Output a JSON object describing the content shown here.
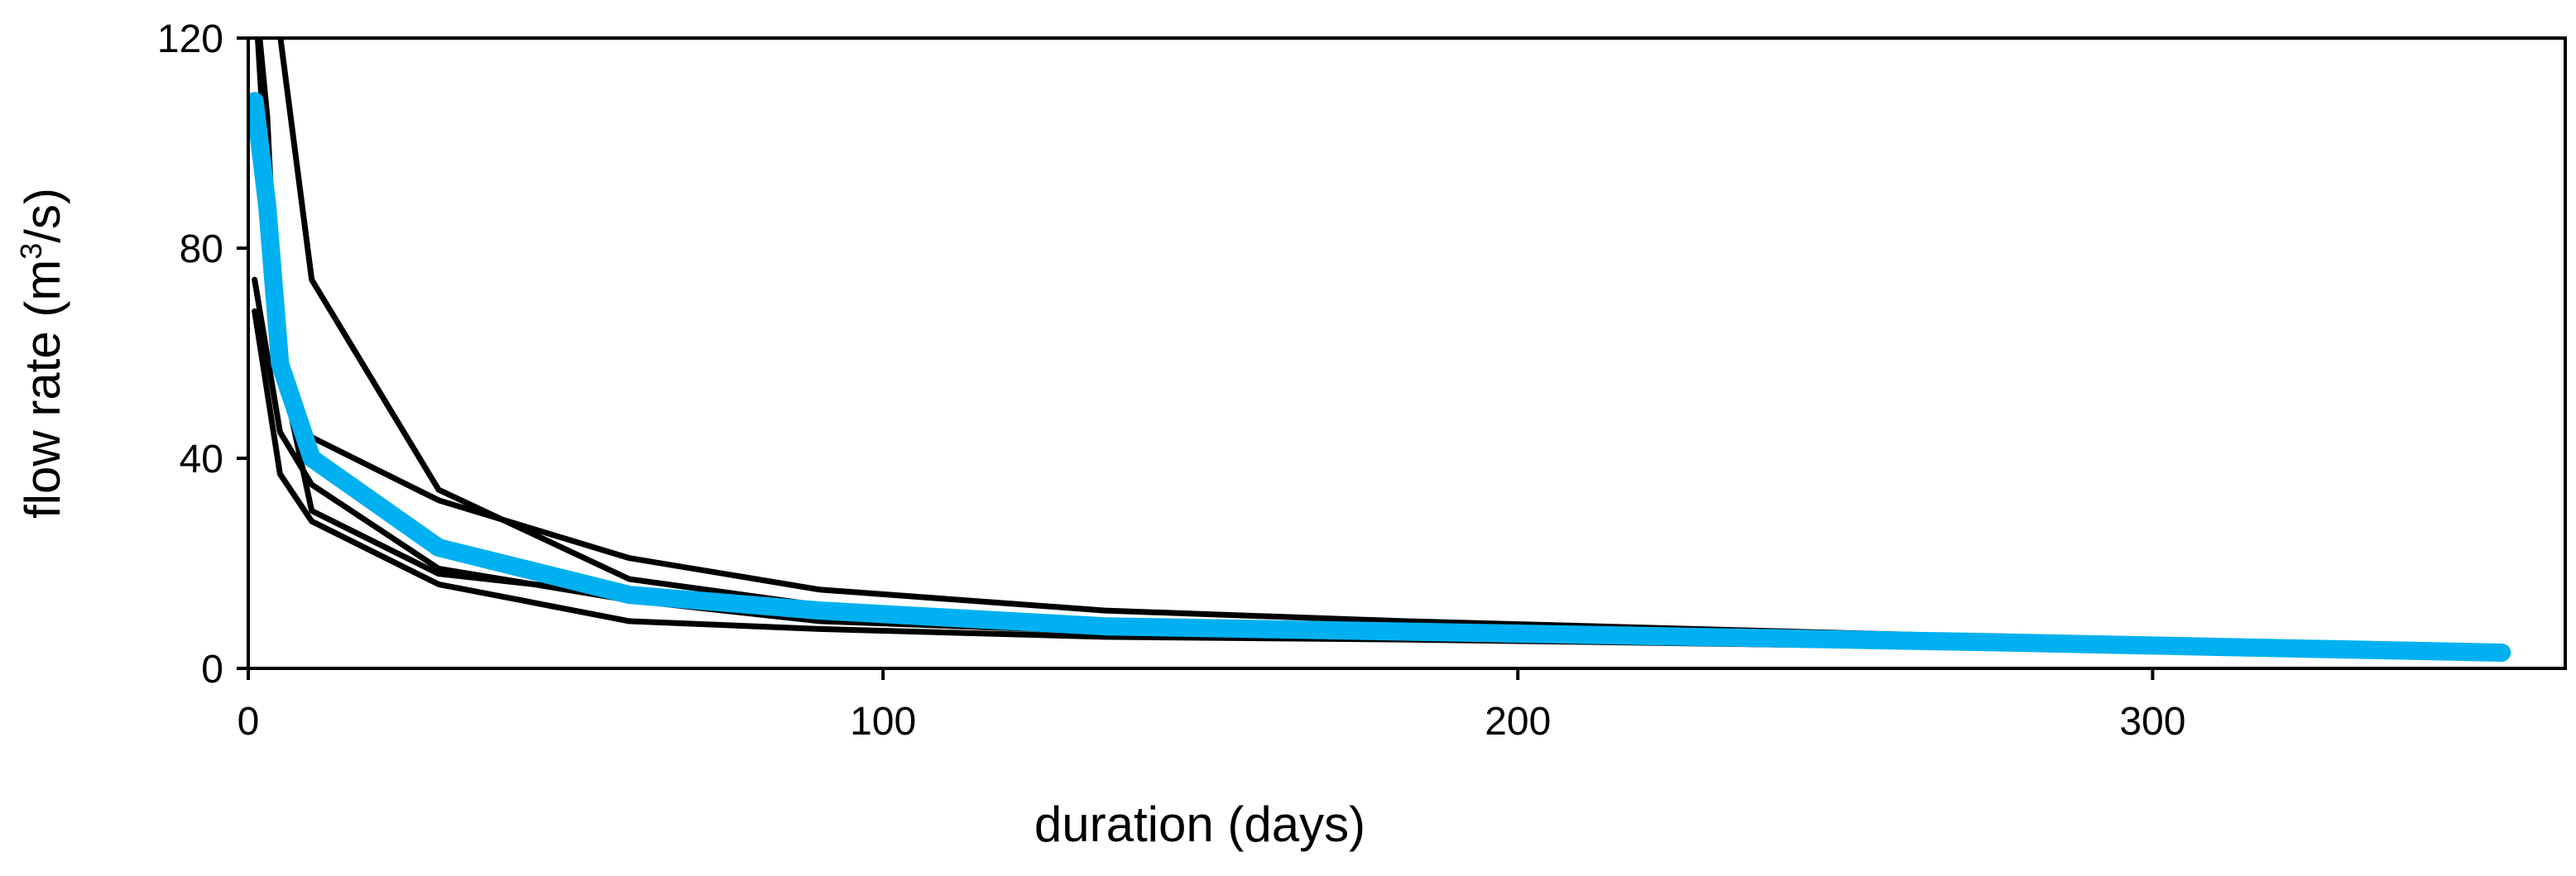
{
  "chart_data": {
    "type": "line",
    "title": "",
    "xlabel": "duration (days)",
    "ylabel_main": "flow rate (m",
    "ylabel_sup": "3",
    "ylabel_end": "/s)",
    "xlim": [
      0,
      365
    ],
    "ylim": [
      0,
      120
    ],
    "xticks": [
      0,
      100,
      200,
      300
    ],
    "yticks": [
      0,
      40,
      80,
      120
    ],
    "grid": false,
    "legend": "none",
    "series": [
      {
        "color": "#000000",
        "emphasis": false,
        "points": [
          [
            1,
            130
          ],
          [
            3,
            105
          ],
          [
            5,
            55
          ],
          [
            10,
            44
          ],
          [
            30,
            32
          ],
          [
            60,
            21
          ],
          [
            90,
            15
          ],
          [
            135,
            11
          ],
          [
            182,
            9
          ],
          [
            274,
            6
          ],
          [
            355,
            3.5
          ]
        ]
      },
      {
        "color": "#000000",
        "emphasis": false,
        "points": [
          [
            1,
            125
          ],
          [
            4,
            130
          ],
          [
            10,
            74
          ],
          [
            30,
            34
          ],
          [
            60,
            17
          ],
          [
            90,
            12
          ],
          [
            135,
            9
          ],
          [
            182,
            8
          ],
          [
            274,
            5.5
          ],
          [
            355,
            3.2
          ]
        ]
      },
      {
        "color": "#000000",
        "emphasis": false,
        "points": [
          [
            1,
            74
          ],
          [
            5,
            45
          ],
          [
            10,
            35
          ],
          [
            30,
            19
          ],
          [
            60,
            13
          ],
          [
            90,
            9
          ],
          [
            135,
            7
          ],
          [
            182,
            6
          ],
          [
            274,
            4.5
          ],
          [
            355,
            3
          ]
        ]
      },
      {
        "color": "#000000",
        "emphasis": false,
        "points": [
          [
            1,
            68
          ],
          [
            5,
            37
          ],
          [
            10,
            28
          ],
          [
            30,
            16
          ],
          [
            60,
            9
          ],
          [
            90,
            7.5
          ],
          [
            135,
            6
          ],
          [
            182,
            5.5
          ],
          [
            274,
            4
          ],
          [
            355,
            2.8
          ]
        ]
      },
      {
        "color": "#000000",
        "emphasis": false,
        "points": [
          [
            1,
            130
          ],
          [
            3,
            90
          ],
          [
            5,
            58
          ],
          [
            10,
            30
          ],
          [
            30,
            18
          ],
          [
            60,
            14
          ],
          [
            90,
            10
          ],
          [
            135,
            8
          ],
          [
            182,
            6.5
          ],
          [
            274,
            5
          ],
          [
            355,
            3
          ]
        ]
      },
      {
        "color": "#00b0f0",
        "emphasis": true,
        "points": [
          [
            1,
            108
          ],
          [
            3,
            88
          ],
          [
            5,
            58
          ],
          [
            10,
            40
          ],
          [
            30,
            23
          ],
          [
            60,
            14
          ],
          [
            90,
            11
          ],
          [
            135,
            8
          ],
          [
            182,
            7
          ],
          [
            274,
            5
          ],
          [
            355,
            3
          ]
        ]
      }
    ]
  }
}
